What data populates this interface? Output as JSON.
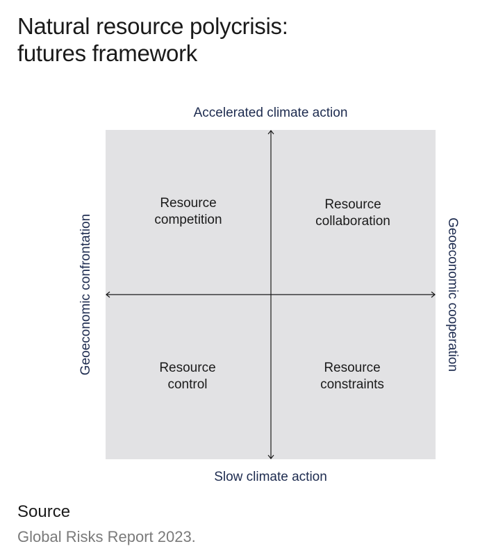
{
  "title": {
    "line1": "Natural resource polycrisis:",
    "line2": "futures framework"
  },
  "axes": {
    "top": "Accelerated climate action",
    "bottom": "Slow climate action",
    "left": "Geoeconomic confrontation",
    "right": "Geoeconomic cooperation"
  },
  "quadrants": {
    "top_left": {
      "line1": "Resource",
      "line2": "competition"
    },
    "top_right": {
      "line1": "Resource",
      "line2": "collaboration"
    },
    "bottom_left": {
      "line1": "Resource",
      "line2": "control"
    },
    "bottom_right": {
      "line1": "Resource",
      "line2": "constraints"
    }
  },
  "colors": {
    "matrix_background": "#e2e2e4",
    "axis_label": "#1d2b4f",
    "arrow": "#1a1a1a",
    "source_text": "#7a7a7a"
  },
  "source": {
    "label": "Source",
    "text": "Global Risks Report 2023."
  }
}
